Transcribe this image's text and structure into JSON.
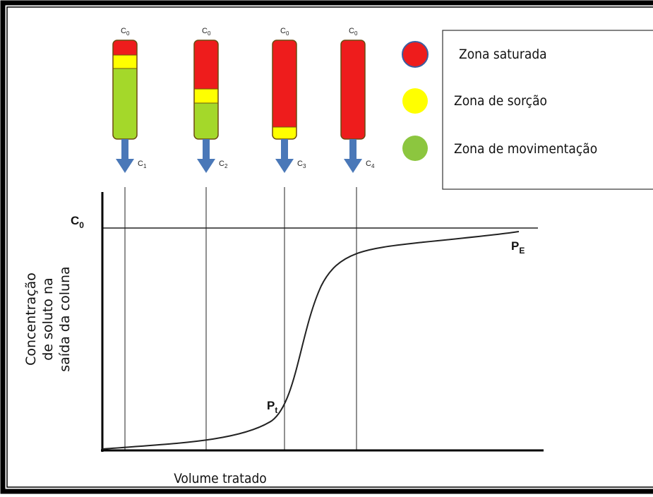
{
  "columns": [
    {
      "top_label": {
        "base": "C",
        "sub": "0"
      },
      "bottom_label": {
        "base": "C",
        "sub": "1"
      }
    },
    {
      "top_label": {
        "base": "C",
        "sub": "0"
      },
      "bottom_label": {
        "base": "C",
        "sub": "2"
      }
    },
    {
      "top_label": {
        "base": "C",
        "sub": "0"
      },
      "bottom_label": {
        "base": "C",
        "sub": "3"
      }
    },
    {
      "top_label": {
        "base": "C",
        "sub": "0"
      },
      "bottom_label": {
        "base": "C",
        "sub": "4"
      }
    }
  ],
  "legend": [
    "Zona saturada",
    "Zona de sorção",
    "Zona de movimentação"
  ],
  "graph": {
    "y_label": [
      "Concentração",
      "de soluto na",
      "saída da coluna"
    ],
    "x_label": "Volume tratado",
    "c0_label": {
      "base": "C",
      "sub": "0"
    },
    "pt_label": {
      "base": "P",
      "sub": "t"
    },
    "pe_label": {
      "base": "P",
      "sub": "E"
    }
  }
}
